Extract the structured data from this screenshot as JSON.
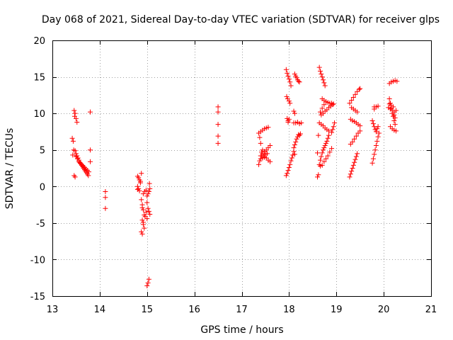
{
  "chart_data": {
    "type": "scatter",
    "title": "Day 068 of 2021, Sidereal Day-to-day VTEC variation (SDTVAR) for receiver glps",
    "xlabel": "GPS time / hours",
    "ylabel": "SDTVAR / TECUs",
    "xlim": [
      13,
      21
    ],
    "ylim": [
      -15,
      20
    ],
    "xticks": [
      13,
      14,
      15,
      16,
      17,
      18,
      19,
      20,
      21
    ],
    "yticks": [
      -15,
      -10,
      -5,
      0,
      5,
      10,
      15,
      20
    ],
    "grid": true,
    "marker": "plus",
    "marker_color": "#ff0000",
    "series": [
      {
        "name": "SDTVAR",
        "points": [
          [
            13.42,
            6.6
          ],
          [
            13.44,
            6.2
          ],
          [
            13.45,
            5.0
          ],
          [
            13.43,
            4.3
          ],
          [
            13.46,
            1.5
          ],
          [
            13.48,
            1.3
          ],
          [
            13.46,
            10.4
          ],
          [
            13.47,
            9.6
          ],
          [
            13.5,
            9.3
          ],
          [
            13.52,
            8.8
          ],
          [
            13.48,
            10.0
          ],
          [
            13.48,
            4.9
          ],
          [
            13.5,
            4.5
          ],
          [
            13.52,
            4.2
          ],
          [
            13.54,
            3.9
          ],
          [
            13.56,
            3.6
          ],
          [
            13.58,
            3.3
          ],
          [
            13.6,
            3.1
          ],
          [
            13.62,
            2.9
          ],
          [
            13.64,
            2.7
          ],
          [
            13.66,
            2.5
          ],
          [
            13.68,
            2.3
          ],
          [
            13.7,
            2.1
          ],
          [
            13.72,
            1.9
          ],
          [
            13.74,
            1.7
          ],
          [
            13.76,
            1.5
          ],
          [
            13.5,
            4.1
          ],
          [
            13.53,
            3.8
          ],
          [
            13.56,
            3.4
          ],
          [
            13.59,
            3.2
          ],
          [
            13.62,
            3.0
          ],
          [
            13.65,
            2.8
          ],
          [
            13.68,
            2.6
          ],
          [
            13.71,
            2.4
          ],
          [
            13.74,
            2.2
          ],
          [
            13.77,
            2.0
          ],
          [
            13.8,
            10.2
          ],
          [
            13.8,
            5.0
          ],
          [
            13.8,
            3.4
          ],
          [
            14.12,
            -0.7
          ],
          [
            14.12,
            -1.5
          ],
          [
            14.12,
            -3.0
          ],
          [
            14.8,
            1.4
          ],
          [
            14.82,
            1.2
          ],
          [
            14.84,
            0.9
          ],
          [
            14.86,
            0.7
          ],
          [
            14.8,
            0.0
          ],
          [
            14.82,
            -0.3
          ],
          [
            14.84,
            -0.6
          ],
          [
            14.8,
            -0.4
          ],
          [
            14.86,
            0.5
          ],
          [
            14.88,
            1.8
          ],
          [
            14.88,
            -1.8
          ],
          [
            14.9,
            -2.5
          ],
          [
            14.92,
            -3.2
          ],
          [
            14.94,
            -3.9
          ],
          [
            14.9,
            -4.6
          ],
          [
            14.92,
            -5.2
          ],
          [
            14.94,
            -5.7
          ],
          [
            14.88,
            -6.2
          ],
          [
            14.9,
            -6.5
          ],
          [
            14.96,
            -4.1
          ],
          [
            14.98,
            -3.5
          ],
          [
            14.92,
            -4.9
          ],
          [
            14.9,
            -2.9
          ],
          [
            14.92,
            -1.0
          ],
          [
            14.95,
            -0.7
          ],
          [
            14.98,
            -0.5
          ],
          [
            15.0,
            -1.3
          ],
          [
            15.02,
            -1.0
          ],
          [
            15.04,
            -0.7
          ],
          [
            15.06,
            -0.3
          ],
          [
            15.05,
            0.4
          ],
          [
            15.0,
            -2.2
          ],
          [
            15.02,
            -3.0
          ],
          [
            15.04,
            -3.4
          ],
          [
            15.06,
            -3.8
          ],
          [
            15.0,
            -4.4
          ],
          [
            15.04,
            -12.7
          ],
          [
            15.02,
            -13.2
          ],
          [
            15.0,
            -13.6
          ],
          [
            16.5,
            10.9
          ],
          [
            16.5,
            10.2
          ],
          [
            16.5,
            8.5
          ],
          [
            16.5,
            6.9
          ],
          [
            16.5,
            5.9
          ],
          [
            17.36,
            3.0
          ],
          [
            17.38,
            3.5
          ],
          [
            17.4,
            4.2
          ],
          [
            17.42,
            4.7
          ],
          [
            17.44,
            5.0
          ],
          [
            17.4,
            5.9
          ],
          [
            17.38,
            6.7
          ],
          [
            17.36,
            7.3
          ],
          [
            17.4,
            7.5
          ],
          [
            17.44,
            7.7
          ],
          [
            17.48,
            7.9
          ],
          [
            17.52,
            8.0
          ],
          [
            17.56,
            8.1
          ],
          [
            17.4,
            3.8
          ],
          [
            17.44,
            3.9
          ],
          [
            17.48,
            4.0
          ],
          [
            17.52,
            3.9
          ],
          [
            17.56,
            3.6
          ],
          [
            17.6,
            3.4
          ],
          [
            17.44,
            4.5
          ],
          [
            17.48,
            4.8
          ],
          [
            17.52,
            5.0
          ],
          [
            17.56,
            5.3
          ],
          [
            17.6,
            5.6
          ],
          [
            17.42,
            4.2
          ],
          [
            17.46,
            4.2
          ],
          [
            17.5,
            4.4
          ],
          [
            17.54,
            4.5
          ],
          [
            17.94,
            1.5
          ],
          [
            17.96,
            1.8
          ],
          [
            17.98,
            2.2
          ],
          [
            18.0,
            2.6
          ],
          [
            18.02,
            3.0
          ],
          [
            18.04,
            3.5
          ],
          [
            18.06,
            3.9
          ],
          [
            18.08,
            4.3
          ],
          [
            17.94,
            16.0
          ],
          [
            17.96,
            15.5
          ],
          [
            17.98,
            15.1
          ],
          [
            18.0,
            14.7
          ],
          [
            18.02,
            14.3
          ],
          [
            18.04,
            13.8
          ],
          [
            17.95,
            12.3
          ],
          [
            17.97,
            12.0
          ],
          [
            18.0,
            11.7
          ],
          [
            18.02,
            11.4
          ],
          [
            17.96,
            9.3
          ],
          [
            17.98,
            9.0
          ],
          [
            18.0,
            9.2
          ],
          [
            17.98,
            8.8
          ],
          [
            18.1,
            5.3
          ],
          [
            18.12,
            5.7
          ],
          [
            18.14,
            6.1
          ],
          [
            18.16,
            6.5
          ],
          [
            18.18,
            6.8
          ],
          [
            18.2,
            7.1
          ],
          [
            18.22,
            7.0
          ],
          [
            18.24,
            7.2
          ],
          [
            18.12,
            15.4
          ],
          [
            18.14,
            15.1
          ],
          [
            18.16,
            14.9
          ],
          [
            18.18,
            14.6
          ],
          [
            18.2,
            14.4
          ],
          [
            18.22,
            14.3
          ],
          [
            18.1,
            8.7
          ],
          [
            18.14,
            8.7
          ],
          [
            18.18,
            8.8
          ],
          [
            18.22,
            8.6
          ],
          [
            18.26,
            8.7
          ],
          [
            18.1,
            4.8
          ],
          [
            18.12,
            4.4
          ],
          [
            18.1,
            10.3
          ],
          [
            18.12,
            10.0
          ],
          [
            18.6,
            1.3
          ],
          [
            18.62,
            1.6
          ],
          [
            18.62,
            7.0
          ],
          [
            18.6,
            4.6
          ],
          [
            18.64,
            16.3
          ],
          [
            18.66,
            15.8
          ],
          [
            18.68,
            15.4
          ],
          [
            18.7,
            15.0
          ],
          [
            18.72,
            14.6
          ],
          [
            18.74,
            14.2
          ],
          [
            18.76,
            13.8
          ],
          [
            18.64,
            3.0
          ],
          [
            18.66,
            3.6
          ],
          [
            18.68,
            4.1
          ],
          [
            18.7,
            4.6
          ],
          [
            18.72,
            5.0
          ],
          [
            18.74,
            5.3
          ],
          [
            18.76,
            5.6
          ],
          [
            18.78,
            5.9
          ],
          [
            18.8,
            6.2
          ],
          [
            18.82,
            6.6
          ],
          [
            18.84,
            7.0
          ],
          [
            18.66,
            2.8
          ],
          [
            18.7,
            2.9
          ],
          [
            18.74,
            3.4
          ],
          [
            18.78,
            3.8
          ],
          [
            18.82,
            4.2
          ],
          [
            18.86,
            4.7
          ],
          [
            18.9,
            5.2
          ],
          [
            18.64,
            8.7
          ],
          [
            18.68,
            8.5
          ],
          [
            18.72,
            8.3
          ],
          [
            18.76,
            8.0
          ],
          [
            18.8,
            7.8
          ],
          [
            18.84,
            7.6
          ],
          [
            18.68,
            9.8
          ],
          [
            18.72,
            10.0
          ],
          [
            18.76,
            10.3
          ],
          [
            18.8,
            10.5
          ],
          [
            18.84,
            10.8
          ],
          [
            18.88,
            11.0
          ],
          [
            18.92,
            11.2
          ],
          [
            18.7,
            12.0
          ],
          [
            18.74,
            11.8
          ],
          [
            18.78,
            11.6
          ],
          [
            18.82,
            11.5
          ],
          [
            18.86,
            11.4
          ],
          [
            18.9,
            11.4
          ],
          [
            18.94,
            11.3
          ],
          [
            18.66,
            10.2
          ],
          [
            18.7,
            10.7
          ],
          [
            18.74,
            11.2
          ],
          [
            18.78,
            11.6
          ],
          [
            18.9,
            7.4
          ],
          [
            18.92,
            7.8
          ],
          [
            18.94,
            8.2
          ],
          [
            18.96,
            8.7
          ],
          [
            19.28,
            1.3
          ],
          [
            19.3,
            1.7
          ],
          [
            19.32,
            2.1
          ],
          [
            19.34,
            2.5
          ],
          [
            19.36,
            2.9
          ],
          [
            19.38,
            3.3
          ],
          [
            19.4,
            3.7
          ],
          [
            19.42,
            4.1
          ],
          [
            19.44,
            4.5
          ],
          [
            19.3,
            5.8
          ],
          [
            19.34,
            6.1
          ],
          [
            19.38,
            6.5
          ],
          [
            19.42,
            6.9
          ],
          [
            19.46,
            7.3
          ],
          [
            19.5,
            7.6
          ],
          [
            19.3,
            9.2
          ],
          [
            19.34,
            9.0
          ],
          [
            19.38,
            8.9
          ],
          [
            19.42,
            8.7
          ],
          [
            19.46,
            8.5
          ],
          [
            19.5,
            8.3
          ],
          [
            19.28,
            11.4
          ],
          [
            19.32,
            11.8
          ],
          [
            19.36,
            12.2
          ],
          [
            19.4,
            12.6
          ],
          [
            19.44,
            13.0
          ],
          [
            19.48,
            13.3
          ],
          [
            19.5,
            13.4
          ],
          [
            19.32,
            10.8
          ],
          [
            19.36,
            10.6
          ],
          [
            19.4,
            10.4
          ],
          [
            19.44,
            10.2
          ],
          [
            19.76,
            3.2
          ],
          [
            19.78,
            3.8
          ],
          [
            19.8,
            4.4
          ],
          [
            19.82,
            5.0
          ],
          [
            19.84,
            5.6
          ],
          [
            19.86,
            6.2
          ],
          [
            19.88,
            6.8
          ],
          [
            19.9,
            7.3
          ],
          [
            19.76,
            9.0
          ],
          [
            19.78,
            8.6
          ],
          [
            19.8,
            8.2
          ],
          [
            19.82,
            7.8
          ],
          [
            19.84,
            7.5
          ],
          [
            19.86,
            7.9
          ],
          [
            19.88,
            8.2
          ],
          [
            19.8,
            10.6
          ],
          [
            19.84,
            10.9
          ],
          [
            19.88,
            11.0
          ],
          [
            19.8,
            10.9
          ],
          [
            20.1,
            10.8
          ],
          [
            20.14,
            10.6
          ],
          [
            20.18,
            10.4
          ],
          [
            20.22,
            10.2
          ],
          [
            20.26,
            10.4
          ],
          [
            20.12,
            11.3
          ],
          [
            20.16,
            11.1
          ],
          [
            20.2,
            10.9
          ],
          [
            20.22,
            9.8
          ],
          [
            20.24,
            9.4
          ],
          [
            20.14,
            8.2
          ],
          [
            20.18,
            7.9
          ],
          [
            20.22,
            7.7
          ],
          [
            20.26,
            7.6
          ],
          [
            20.12,
            14.1
          ],
          [
            20.16,
            14.3
          ],
          [
            20.2,
            14.4
          ],
          [
            20.24,
            14.5
          ],
          [
            20.28,
            14.4
          ],
          [
            20.12,
            12.0
          ],
          [
            20.14,
            11.4
          ],
          [
            20.16,
            10.7
          ],
          [
            20.18,
            10.0
          ],
          [
            20.2,
            9.6
          ],
          [
            20.22,
            9.0
          ],
          [
            20.24,
            8.5
          ]
        ]
      }
    ]
  }
}
